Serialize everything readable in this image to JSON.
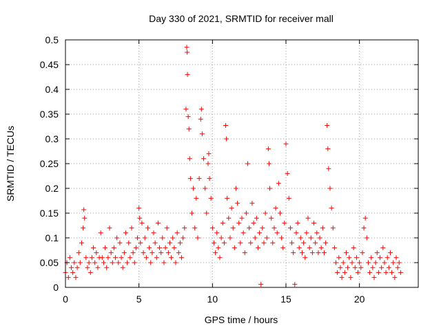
{
  "chart_data": {
    "type": "scatter",
    "title": "Day 330 of 2021, SRMTID for receiver mall",
    "xlabel": "GPS time / hours",
    "ylabel": "SRMTID / TECUs",
    "xlim": [
      0,
      24
    ],
    "ylim": [
      0,
      0.5
    ],
    "grid": true,
    "marker": "+",
    "color": "#ff0000",
    "xticks": [
      {
        "value": 0,
        "label": "0"
      },
      {
        "value": 5,
        "label": "5"
      },
      {
        "value": 10,
        "label": "10"
      },
      {
        "value": 15,
        "label": "15"
      },
      {
        "value": 20,
        "label": "20"
      }
    ],
    "yticks": [
      {
        "value": 0,
        "label": "0"
      },
      {
        "value": 0.05,
        "label": "0.05"
      },
      {
        "value": 0.1,
        "label": "0.1"
      },
      {
        "value": 0.15,
        "label": "0.15"
      },
      {
        "value": 0.2,
        "label": "0.2"
      },
      {
        "value": 0.25,
        "label": "0.25"
      },
      {
        "value": 0.3,
        "label": "0.3"
      },
      {
        "value": 0.35,
        "label": "0.35"
      },
      {
        "value": 0.4,
        "label": "0.4"
      },
      {
        "value": 0.45,
        "label": "0.45"
      },
      {
        "value": 0.5,
        "label": "0.5"
      }
    ],
    "series": [
      {
        "name": "SRMTID",
        "points": [
          [
            0.0,
            0.03
          ],
          [
            0.1,
            0.05
          ],
          [
            0.2,
            0.02
          ],
          [
            0.3,
            0.06
          ],
          [
            0.4,
            0.04
          ],
          [
            0.5,
            0.03
          ],
          [
            0.6,
            0.05
          ],
          [
            0.7,
            0.02
          ],
          [
            0.8,
            0.04
          ],
          [
            0.9,
            0.07
          ],
          [
            1.0,
            0.05
          ],
          [
            1.1,
            0.09
          ],
          [
            1.2,
            0.12
          ],
          [
            1.25,
            0.157
          ],
          [
            1.3,
            0.14
          ],
          [
            1.4,
            0.06
          ],
          [
            1.5,
            0.04
          ],
          [
            1.6,
            0.05
          ],
          [
            1.7,
            0.03
          ],
          [
            1.8,
            0.06
          ],
          [
            1.9,
            0.08
          ],
          [
            2.0,
            0.05
          ],
          [
            2.1,
            0.07
          ],
          [
            2.2,
            0.04
          ],
          [
            2.3,
            0.06
          ],
          [
            2.4,
            0.11
          ],
          [
            2.5,
            0.06
          ],
          [
            2.6,
            0.05
          ],
          [
            2.7,
            0.08
          ],
          [
            2.8,
            0.04
          ],
          [
            2.9,
            0.06
          ],
          [
            3.0,
            0.12
          ],
          [
            3.1,
            0.07
          ],
          [
            3.2,
            0.05
          ],
          [
            3.3,
            0.08
          ],
          [
            3.4,
            0.06
          ],
          [
            3.5,
            0.1
          ],
          [
            3.6,
            0.05
          ],
          [
            3.7,
            0.09
          ],
          [
            3.8,
            0.06
          ],
          [
            3.9,
            0.04
          ],
          [
            4.0,
            0.07
          ],
          [
            4.1,
            0.11
          ],
          [
            4.2,
            0.05
          ],
          [
            4.3,
            0.09
          ],
          [
            4.4,
            0.06
          ],
          [
            4.5,
            0.12
          ],
          [
            4.6,
            0.07
          ],
          [
            4.7,
            0.05
          ],
          [
            4.8,
            0.08
          ],
          [
            4.9,
            0.1
          ],
          [
            5.0,
            0.16
          ],
          [
            5.05,
            0.14
          ],
          [
            5.1,
            0.09
          ],
          [
            5.2,
            0.13
          ],
          [
            5.3,
            0.07
          ],
          [
            5.4,
            0.1
          ],
          [
            5.5,
            0.06
          ],
          [
            5.6,
            0.12
          ],
          [
            5.7,
            0.08
          ],
          [
            5.8,
            0.05
          ],
          [
            5.9,
            0.07
          ],
          [
            6.0,
            0.11
          ],
          [
            6.1,
            0.09
          ],
          [
            6.2,
            0.06
          ],
          [
            6.3,
            0.13
          ],
          [
            6.4,
            0.08
          ],
          [
            6.5,
            0.07
          ],
          [
            6.6,
            0.1
          ],
          [
            6.7,
            0.05
          ],
          [
            6.8,
            0.08
          ],
          [
            6.9,
            0.12
          ],
          [
            7.0,
            0.07
          ],
          [
            7.1,
            0.09
          ],
          [
            7.2,
            0.06
          ],
          [
            7.3,
            0.1
          ],
          [
            7.4,
            0.08
          ],
          [
            7.5,
            0.05
          ],
          [
            7.6,
            0.11
          ],
          [
            7.7,
            0.07
          ],
          [
            7.8,
            0.09
          ],
          [
            7.9,
            0.06
          ],
          [
            8.0,
            0.1
          ],
          [
            8.1,
            0.12
          ],
          [
            8.2,
            0.36
          ],
          [
            8.25,
            0.485
          ],
          [
            8.28,
            0.475
          ],
          [
            8.3,
            0.43
          ],
          [
            8.35,
            0.345
          ],
          [
            8.4,
            0.32
          ],
          [
            8.45,
            0.26
          ],
          [
            8.5,
            0.22
          ],
          [
            8.6,
            0.15
          ],
          [
            8.7,
            0.2
          ],
          [
            8.8,
            0.12
          ],
          [
            8.9,
            0.18
          ],
          [
            9.0,
            0.1
          ],
          [
            9.1,
            0.22
          ],
          [
            9.2,
            0.34
          ],
          [
            9.25,
            0.36
          ],
          [
            9.3,
            0.31
          ],
          [
            9.4,
            0.26
          ],
          [
            9.5,
            0.2
          ],
          [
            9.6,
            0.15
          ],
          [
            9.7,
            0.25
          ],
          [
            9.75,
            0.27
          ],
          [
            9.8,
            0.22
          ],
          [
            9.9,
            0.18
          ],
          [
            10.0,
            0.12
          ],
          [
            10.1,
            0.09
          ],
          [
            10.2,
            0.07
          ],
          [
            10.3,
            0.11
          ],
          [
            10.4,
            0.08
          ],
          [
            10.5,
            0.06
          ],
          [
            10.6,
            0.1
          ],
          [
            10.7,
            0.13
          ],
          [
            10.8,
            0.09
          ],
          [
            10.9,
            0.327
          ],
          [
            10.95,
            0.3
          ],
          [
            11.0,
            0.18
          ],
          [
            11.1,
            0.14
          ],
          [
            11.2,
            0.1
          ],
          [
            11.3,
            0.16
          ],
          [
            11.4,
            0.12
          ],
          [
            11.5,
            0.08
          ],
          [
            11.6,
            0.2
          ],
          [
            11.7,
            0.17
          ],
          [
            11.8,
            0.13
          ],
          [
            11.9,
            0.09
          ],
          [
            12.0,
            0.14
          ],
          [
            12.1,
            0.11
          ],
          [
            12.2,
            0.07
          ],
          [
            12.3,
            0.15
          ],
          [
            12.4,
            0.25
          ],
          [
            12.5,
            0.12
          ],
          [
            12.6,
            0.09
          ],
          [
            12.7,
            0.17
          ],
          [
            12.8,
            0.13
          ],
          [
            12.9,
            0.1
          ],
          [
            13.0,
            0.14
          ],
          [
            13.1,
            0.08
          ],
          [
            13.2,
            0.11
          ],
          [
            13.3,
            0.006
          ],
          [
            13.4,
            0.12
          ],
          [
            13.5,
            0.09
          ],
          [
            13.6,
            0.15
          ],
          [
            13.7,
            0.1
          ],
          [
            13.8,
            0.28
          ],
          [
            13.85,
            0.25
          ],
          [
            13.9,
            0.2
          ],
          [
            14.0,
            0.14
          ],
          [
            14.1,
            0.09
          ],
          [
            14.2,
            0.12
          ],
          [
            14.3,
            0.16
          ],
          [
            14.4,
            0.11
          ],
          [
            14.5,
            0.21
          ],
          [
            14.6,
            0.15
          ],
          [
            14.7,
            0.1
          ],
          [
            14.8,
            0.08
          ],
          [
            14.9,
            0.13
          ],
          [
            15.0,
            0.29
          ],
          [
            15.1,
            0.23
          ],
          [
            15.2,
            0.18
          ],
          [
            15.3,
            0.12
          ],
          [
            15.4,
            0.09
          ],
          [
            15.5,
            0.07
          ],
          [
            15.6,
            0.006
          ],
          [
            15.7,
            0.11
          ],
          [
            15.8,
            0.13
          ],
          [
            15.9,
            0.08
          ],
          [
            16.0,
            0.1
          ],
          [
            16.1,
            0.07
          ],
          [
            16.2,
            0.09
          ],
          [
            16.3,
            0.06
          ],
          [
            16.4,
            0.11
          ],
          [
            16.5,
            0.14
          ],
          [
            16.6,
            0.08
          ],
          [
            16.7,
            0.1
          ],
          [
            16.8,
            0.07
          ],
          [
            16.9,
            0.13
          ],
          [
            17.0,
            0.09
          ],
          [
            17.1,
            0.11
          ],
          [
            17.2,
            0.07
          ],
          [
            17.3,
            0.1
          ],
          [
            17.4,
            0.08
          ],
          [
            17.5,
            0.12
          ],
          [
            17.6,
            0.07
          ],
          [
            17.7,
            0.09
          ],
          [
            17.8,
            0.327
          ],
          [
            17.85,
            0.28
          ],
          [
            17.9,
            0.24
          ],
          [
            18.0,
            0.2
          ],
          [
            18.1,
            0.16
          ],
          [
            18.2,
            0.12
          ],
          [
            18.3,
            0.08
          ],
          [
            18.4,
            0.05
          ],
          [
            18.5,
            0.03
          ],
          [
            18.6,
            0.06
          ],
          [
            18.7,
            0.04
          ],
          [
            18.8,
            0.02
          ],
          [
            18.9,
            0.05
          ],
          [
            19.0,
            0.03
          ],
          [
            19.1,
            0.07
          ],
          [
            19.2,
            0.04
          ],
          [
            19.3,
            0.06
          ],
          [
            19.4,
            0.02
          ],
          [
            19.5,
            0.05
          ],
          [
            19.6,
            0.08
          ],
          [
            19.7,
            0.04
          ],
          [
            19.8,
            0.06
          ],
          [
            19.9,
            0.03
          ],
          [
            20.0,
            0.05
          ],
          [
            20.1,
            0.04
          ],
          [
            20.2,
            0.07
          ],
          [
            20.3,
            0.12
          ],
          [
            20.4,
            0.14
          ],
          [
            20.5,
            0.1
          ],
          [
            20.6,
            0.05
          ],
          [
            20.7,
            0.03
          ],
          [
            20.8,
            0.06
          ],
          [
            20.9,
            0.04
          ],
          [
            21.0,
            0.02
          ],
          [
            21.1,
            0.05
          ],
          [
            21.2,
            0.07
          ],
          [
            21.3,
            0.03
          ],
          [
            21.4,
            0.06
          ],
          [
            21.5,
            0.04
          ],
          [
            21.6,
            0.08
          ],
          [
            21.7,
            0.05
          ],
          [
            21.8,
            0.03
          ],
          [
            21.9,
            0.06
          ],
          [
            22.0,
            0.04
          ],
          [
            22.1,
            0.07
          ],
          [
            22.2,
            0.03
          ],
          [
            22.3,
            0.05
          ],
          [
            22.4,
            0.02
          ],
          [
            22.5,
            0.06
          ],
          [
            22.6,
            0.04
          ],
          [
            22.7,
            0.05
          ],
          [
            22.8,
            0.03
          ]
        ]
      }
    ]
  }
}
